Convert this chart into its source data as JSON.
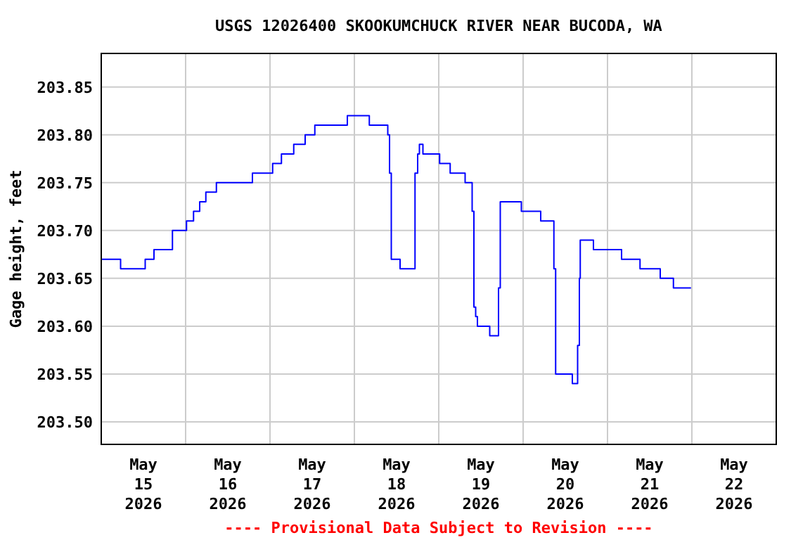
{
  "chart_data": {
    "type": "step",
    "title": "USGS 12026400 SKOOKUMCHUCK RIVER NEAR BUCODA, WA",
    "ylabel": "Gage height, feet",
    "x": [
      "2026-05-15T00:00",
      "2026-05-15T05:30",
      "2026-05-15T12:30",
      "2026-05-15T15:00",
      "2026-05-15T20:15",
      "2026-05-16T00:15",
      "2026-05-16T02:15",
      "2026-05-16T04:00",
      "2026-05-16T05:45",
      "2026-05-16T08:45",
      "2026-05-16T19:00",
      "2026-05-17T00:45",
      "2026-05-17T03:15",
      "2026-05-17T06:45",
      "2026-05-17T10:00",
      "2026-05-17T12:45",
      "2026-05-17T22:00",
      "2026-05-18T04:15",
      "2026-05-18T09:30",
      "2026-05-18T10:00",
      "2026-05-18T10:30",
      "2026-05-18T13:00",
      "2026-05-18T17:15",
      "2026-05-18T18:00",
      "2026-05-18T18:30",
      "2026-05-18T19:30",
      "2026-05-19T00:15",
      "2026-05-19T03:15",
      "2026-05-19T07:30",
      "2026-05-19T09:30",
      "2026-05-19T10:00",
      "2026-05-19T10:30",
      "2026-05-19T11:00",
      "2026-05-19T14:30",
      "2026-05-19T17:00",
      "2026-05-19T17:30",
      "2026-05-19T23:30",
      "2026-05-20T05:00",
      "2026-05-20T08:45",
      "2026-05-20T09:15",
      "2026-05-20T14:00",
      "2026-05-20T15:30",
      "2026-05-20T16:00",
      "2026-05-20T16:15",
      "2026-05-20T20:00",
      "2026-05-21T04:00",
      "2026-05-21T09:15",
      "2026-05-21T15:00",
      "2026-05-21T18:45",
      "2026-05-21T23:45"
    ],
    "series": [
      {
        "color": "#0000ff",
        "values": [
          203.67,
          203.66,
          203.67,
          203.68,
          203.7,
          203.71,
          203.72,
          203.73,
          203.74,
          203.75,
          203.76,
          203.77,
          203.78,
          203.79,
          203.8,
          203.81,
          203.82,
          203.81,
          203.8,
          203.76,
          203.67,
          203.66,
          203.76,
          203.78,
          203.79,
          203.78,
          203.77,
          203.76,
          203.75,
          203.72,
          203.62,
          203.61,
          203.6,
          203.59,
          203.64,
          203.73,
          203.72,
          203.71,
          203.66,
          203.55,
          203.54,
          203.58,
          203.65,
          203.69,
          203.68,
          203.67,
          203.66,
          203.65,
          203.64,
          203.64
        ]
      }
    ],
    "xlim": [
      "2026-05-15T00:00",
      "2026-05-23T00:00"
    ],
    "xticks": [
      {
        "value": "2026-05-15T12:00",
        "label": "May\n15\n2026"
      },
      {
        "value": "2026-05-16T00:00",
        "label": null
      },
      {
        "value": "2026-05-16T12:00",
        "label": "May\n16\n2026"
      },
      {
        "value": "2026-05-17T00:00",
        "label": null
      },
      {
        "value": "2026-05-17T12:00",
        "label": "May\n17\n2026"
      },
      {
        "value": "2026-05-18T00:00",
        "label": null
      },
      {
        "value": "2026-05-18T12:00",
        "label": "May\n18\n2026"
      },
      {
        "value": "2026-05-19T00:00",
        "label": null
      },
      {
        "value": "2026-05-19T12:00",
        "label": "May\n19\n2026"
      },
      {
        "value": "2026-05-20T00:00",
        "label": null
      },
      {
        "value": "2026-05-20T12:00",
        "label": "May\n20\n2026"
      },
      {
        "value": "2026-05-21T00:00",
        "label": null
      },
      {
        "value": "2026-05-21T12:00",
        "label": "May\n21\n2026"
      },
      {
        "value": "2026-05-22T00:00",
        "label": null
      },
      {
        "value": "2026-05-22T12:00",
        "label": "May\n22\n2026"
      }
    ],
    "ylim": [
      203.4765,
      203.885
    ],
    "yticks": [
      {
        "value": 203.5,
        "label": "203.50"
      },
      {
        "value": 203.55,
        "label": "203.55"
      },
      {
        "value": 203.6,
        "label": "203.60"
      },
      {
        "value": 203.65,
        "label": "203.65"
      },
      {
        "value": 203.7,
        "label": "203.70"
      },
      {
        "value": 203.75,
        "label": "203.75"
      },
      {
        "value": 203.8,
        "label": "203.80"
      },
      {
        "value": 203.85,
        "label": "203.85"
      }
    ],
    "grid": true,
    "annotations": [
      "---- Provisional Data Subject to Revision ----"
    ]
  }
}
